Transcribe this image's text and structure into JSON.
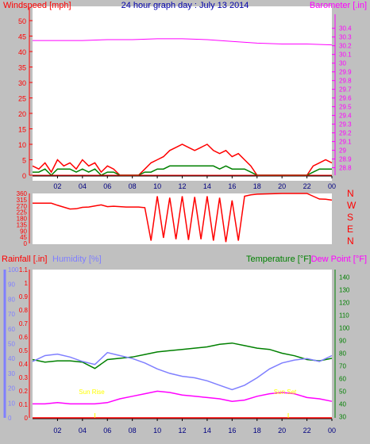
{
  "chart_data": [
    {
      "id": "wind_baro",
      "type": "line",
      "title": "24 hour graph day : July 13 2014",
      "left_axis_title": "Windspeed [mph]",
      "right_axis_title": "Barometer [.in]",
      "left_ylim": [
        0,
        50
      ],
      "left_ticks": [
        "0",
        "5",
        "10",
        "15",
        "20",
        "25",
        "30",
        "35",
        "40",
        "45",
        "50"
      ],
      "right_ylim": [
        28.75,
        30.47
      ],
      "right_ticks": [
        "28.8",
        "28.9",
        "29",
        "29.1",
        "29.2",
        "29.3",
        "29.4",
        "29.5",
        "29.6",
        "29.7",
        "29.8",
        "29.9",
        "30",
        "30.1",
        "30.2",
        "30.3",
        "30.4"
      ],
      "x_ticks": [
        "02",
        "04",
        "06",
        "08",
        "10",
        "12",
        "14",
        "16",
        "18",
        "20",
        "22",
        "00"
      ],
      "xlim_hours": [
        0,
        24
      ],
      "series": [
        {
          "role": "gust",
          "color": "#ff0000",
          "x": [
            0,
            0.5,
            1,
            1.5,
            2,
            2.5,
            3,
            3.5,
            4,
            4.5,
            5,
            5.5,
            6,
            6.5,
            7,
            7.5,
            8,
            8.5,
            9,
            9.5,
            10,
            10.5,
            11,
            11.5,
            12,
            12.5,
            13,
            13.5,
            14,
            14.5,
            15,
            15.5,
            16,
            16.5,
            17,
            17.5,
            18,
            22,
            22.5,
            23,
            23.5,
            24
          ],
          "y": [
            3,
            2,
            4,
            1,
            5,
            3,
            4,
            2,
            5,
            3,
            4,
            1,
            3,
            2,
            0,
            0,
            0,
            0,
            2,
            4,
            5,
            6,
            8,
            9,
            10,
            9,
            8,
            9,
            10,
            8,
            7,
            8,
            6,
            7,
            5,
            3,
            0,
            0,
            3,
            4,
            5,
            4
          ]
        },
        {
          "role": "average",
          "color": "#008000",
          "x": [
            0,
            0.5,
            1,
            1.5,
            2,
            2.5,
            3,
            3.5,
            4,
            4.5,
            5,
            5.5,
            6,
            6.5,
            7,
            7.5,
            8,
            8.5,
            9,
            9.5,
            10,
            10.5,
            11,
            11.5,
            12,
            12.5,
            13,
            13.5,
            14,
            14.5,
            15,
            15.5,
            16,
            16.5,
            17,
            17.5,
            18,
            22,
            22.5,
            23,
            23.5,
            24
          ],
          "y": [
            1,
            1,
            2,
            0,
            2,
            2,
            2,
            1,
            2,
            1,
            2,
            0,
            1,
            1,
            0,
            0,
            0,
            0,
            1,
            1,
            2,
            2,
            3,
            3,
            3,
            3,
            3,
            3,
            3,
            3,
            2,
            3,
            2,
            2,
            2,
            1,
            0,
            0,
            1,
            2,
            2,
            2
          ]
        },
        {
          "role": "barometer",
          "color": "#ff00ff",
          "x": [
            0,
            2,
            4,
            6,
            8,
            10,
            12,
            14,
            16,
            18,
            20,
            22,
            24
          ],
          "y": [
            30.26,
            30.26,
            30.26,
            30.27,
            30.27,
            30.28,
            30.28,
            30.27,
            30.25,
            30.23,
            30.22,
            30.22,
            30.21
          ]
        }
      ]
    },
    {
      "id": "wind_dir",
      "type": "line",
      "left_ticks": [
        "0",
        "45",
        "90",
        "135",
        "180",
        "225",
        "270",
        "315",
        "360"
      ],
      "ylim": [
        0,
        360
      ],
      "right_labels": [
        "N",
        "W",
        "S",
        "E",
        "N"
      ],
      "x_ticks": [
        "02",
        "04",
        "06",
        "08",
        "10",
        "12",
        "14",
        "16",
        "18",
        "20",
        "22",
        "00"
      ],
      "xlim_hours": [
        0,
        24
      ],
      "series": [
        {
          "role": "direction",
          "color": "#ff0000",
          "x": [
            0,
            1.5,
            2,
            3,
            3.5,
            4,
            4.5,
            5,
            5.5,
            6,
            6.5,
            7,
            7.5,
            8,
            8.5,
            9,
            9.5,
            10,
            10.5,
            11,
            11.5,
            12,
            12.5,
            13,
            13.5,
            14,
            14.5,
            15,
            15.5,
            16,
            16.5,
            17,
            17.5,
            18,
            20,
            22,
            22.5,
            23,
            23.5,
            24
          ],
          "y": [
            290,
            290,
            275,
            248,
            250,
            260,
            262,
            270,
            278,
            265,
            268,
            265,
            262,
            262,
            262,
            258,
            20,
            340,
            40,
            330,
            30,
            340,
            25,
            335,
            30,
            340,
            20,
            330,
            10,
            310,
            20,
            340,
            350,
            355,
            360,
            360,
            340,
            320,
            318,
            312
          ]
        }
      ]
    },
    {
      "id": "rain_temp",
      "type": "line",
      "rain_title": "Rainfall [.in]",
      "humidity_title": "Humidity [%]",
      "temperature_title": "Temperature [°F]",
      "dewpoint_title": "Dew Point [°F]",
      "rain_ylim": [
        0,
        1.1
      ],
      "rain_ticks": [
        "0",
        "0.1",
        "0.2",
        "0.3",
        "0.4",
        "0.5",
        "0.6",
        "0.7",
        "0.8",
        "0.9",
        "1",
        "1.1"
      ],
      "humidity_ylim": [
        0,
        100
      ],
      "humidity_ticks": [
        "0",
        "10",
        "20",
        "30",
        "40",
        "50",
        "60",
        "70",
        "80",
        "90",
        "100"
      ],
      "temp_ylim": [
        29,
        146
      ],
      "temp_ticks": [
        "30",
        "40",
        "50",
        "60",
        "70",
        "80",
        "90",
        "100",
        "110",
        "120",
        "130",
        "140"
      ],
      "x_ticks": [
        "02",
        "04",
        "06",
        "08",
        "10",
        "12",
        "14",
        "16",
        "18",
        "20",
        "22",
        "00"
      ],
      "xlim_hours": [
        0,
        24
      ],
      "annotations": [
        {
          "text": "Sun Rise",
          "hour": 5.0,
          "color": "#ffff00"
        },
        {
          "text": "Sun Set",
          "hour": 20.5,
          "color": "#ffff00"
        }
      ],
      "series": [
        {
          "role": "temperature",
          "color": "#008000",
          "x": [
            0,
            1,
            2,
            3,
            4,
            5,
            6,
            7,
            8,
            9,
            10,
            11,
            12,
            13,
            14,
            15,
            16,
            17,
            18,
            19,
            20,
            21,
            22,
            23,
            24
          ],
          "y": [
            75,
            73,
            74,
            74,
            73,
            68,
            75,
            76,
            77,
            79,
            81,
            82,
            83,
            84,
            85,
            87,
            88,
            86,
            84,
            83,
            80,
            78,
            75,
            74,
            76
          ]
        },
        {
          "role": "humidity",
          "color": "#7f7fff",
          "x": [
            0,
            1,
            2,
            3,
            4,
            5,
            6,
            7,
            8,
            9,
            10,
            11,
            12,
            13,
            14,
            15,
            16,
            17,
            18,
            19,
            20,
            21,
            22,
            23,
            24
          ],
          "y": [
            38,
            42,
            43,
            41,
            38,
            36,
            44,
            42,
            40,
            37,
            33,
            30,
            28,
            27,
            25,
            22,
            19,
            22,
            27,
            33,
            37,
            39,
            40,
            38,
            42
          ]
        },
        {
          "role": "dewpoint",
          "color": "#ff00ff",
          "x": [
            0,
            1,
            2,
            3,
            4,
            5,
            6,
            7,
            8,
            9,
            10,
            11,
            12,
            13,
            14,
            15,
            16,
            17,
            18,
            19,
            20,
            21,
            22,
            23,
            24
          ],
          "y": [
            40,
            40,
            41,
            40,
            40,
            40,
            41,
            44,
            46,
            48,
            50,
            49,
            47,
            46,
            45,
            44,
            42,
            43,
            46,
            48,
            49,
            48,
            45,
            44,
            42
          ]
        },
        {
          "role": "rainfall",
          "color": "#ff0000",
          "x": [
            0,
            24
          ],
          "y": [
            0,
            0
          ]
        }
      ]
    }
  ]
}
